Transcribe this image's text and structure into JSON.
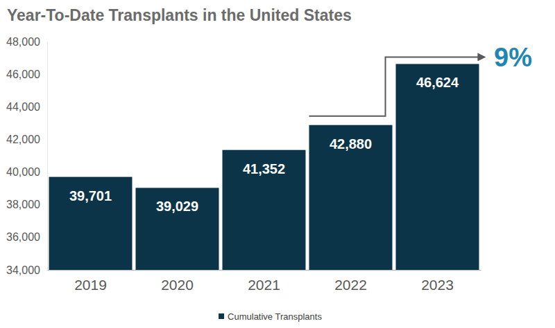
{
  "chart_data": {
    "type": "bar",
    "title": "Year-To-Date Transplants in the United States",
    "categories": [
      "2019",
      "2020",
      "2021",
      "2022",
      "2023"
    ],
    "series": [
      {
        "name": "Cumulative Transplants",
        "color": "#0b3449",
        "values": [
          39701,
          39029,
          41352,
          42880,
          46624
        ],
        "value_labels": [
          "39,701",
          "39,029",
          "41,352",
          "42,880",
          "46,624"
        ]
      }
    ],
    "ylim": [
      34000,
      48000
    ],
    "yticks": [
      {
        "value": 34000,
        "label": "34,000"
      },
      {
        "value": 36000,
        "label": "36,000"
      },
      {
        "value": 38000,
        "label": "38,000"
      },
      {
        "value": 40000,
        "label": "40,000"
      },
      {
        "value": 42000,
        "label": "42,000"
      },
      {
        "value": 44000,
        "label": "44,000"
      },
      {
        "value": 46000,
        "label": "46,000"
      },
      {
        "value": 48000,
        "label": "48,000"
      }
    ],
    "grid": false,
    "data_labels": true,
    "legend": "bottom",
    "annotations": [
      "9%"
    ]
  }
}
